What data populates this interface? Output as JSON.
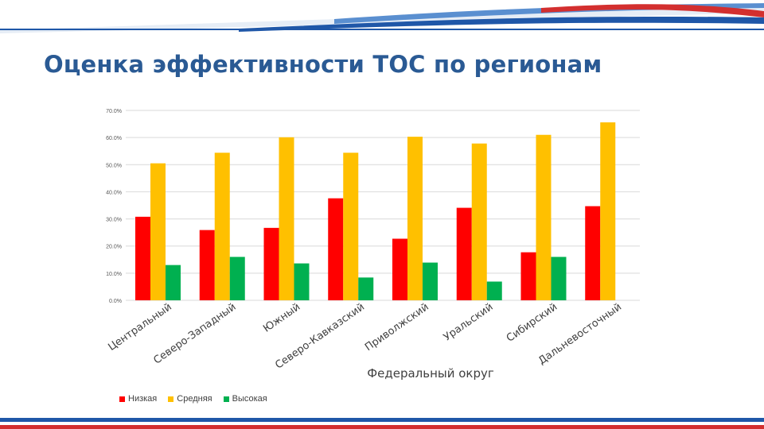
{
  "title": "Оценка эффективности ТОС по регионам",
  "colors": {
    "brand_blue": "#2a5a94",
    "band_red": "#d32f2f",
    "band_blue": "#1f57a8"
  },
  "chart_data": {
    "type": "bar",
    "xlabel": "Федеральный округ",
    "ylabel": "",
    "ylim": [
      0,
      70
    ],
    "yticks": [
      "0.0%",
      "10.0%",
      "20.0%",
      "30.0%",
      "40.0%",
      "50.0%",
      "60.0%",
      "70.0%"
    ],
    "grid": true,
    "legend_position": "bottom-left",
    "categories": [
      "Центральный",
      "Северо-Западный",
      "Южный",
      "Северо-Кавказский",
      "Приволжский",
      "Уральский",
      "Сибирский",
      "Дальневосточный"
    ],
    "series": [
      {
        "name": "Низкая",
        "color": "#ff0000",
        "values": [
          30.8,
          25.9,
          26.7,
          37.6,
          22.7,
          34.1,
          17.7,
          34.7
        ]
      },
      {
        "name": "Средняя",
        "color": "#ffc000",
        "values": [
          50.5,
          54.4,
          60.1,
          54.4,
          60.3,
          57.8,
          61.0,
          65.6
        ]
      },
      {
        "name": "Высокая",
        "color": "#00b050",
        "values": [
          13.0,
          16.0,
          13.6,
          8.4,
          13.9,
          6.9,
          16.0,
          0
        ]
      }
    ]
  }
}
